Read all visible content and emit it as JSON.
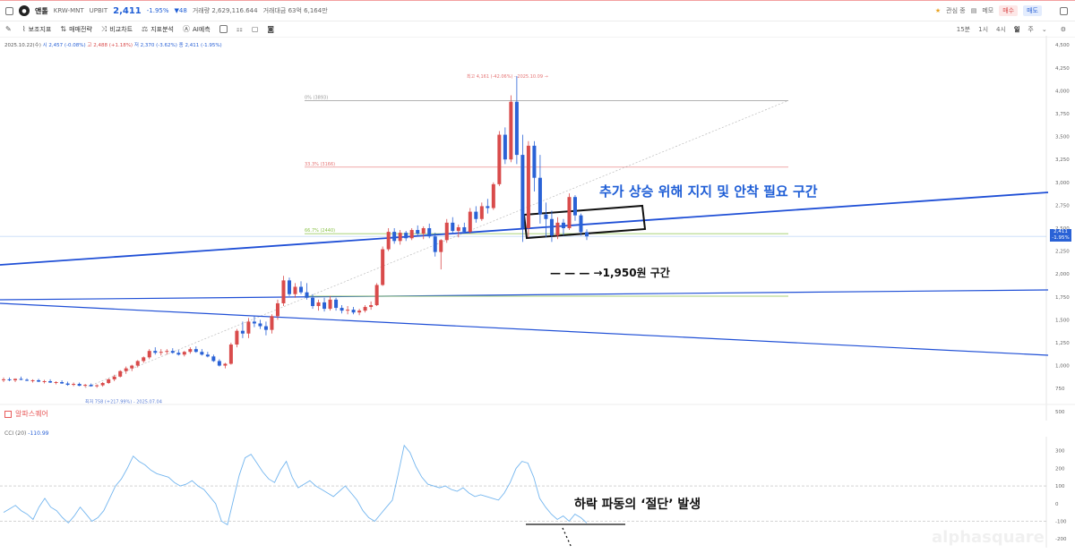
{
  "topbar": {
    "coin_name": "앤톨",
    "market": "KRW-MNT",
    "exchange": "UPBIT",
    "price": "2,411",
    "change": "-1.95%",
    "change_abs": "▼48",
    "volume": "거래량 2,629,116.644",
    "amount": "거래대금 63억 6,164만",
    "fav_label": "관심 종",
    "memo_label": "메모",
    "buy_label": "매수",
    "sell_label": "매도"
  },
  "toolbar": {
    "items": [
      "보조지표",
      "매매전략",
      "비교차트",
      "지표분석",
      "AI예측"
    ],
    "timeframes": [
      "15분",
      "1시",
      "4시",
      "일",
      "주"
    ],
    "active_timeframe": "일"
  },
  "ohlc": {
    "date": "2025.10.22(수)",
    "open": "시 2,457 (-0.08%)",
    "high": "고 2,488 (+1.18%)",
    "low": "저 2,370 (-3.62%)",
    "close": "종 2,411 (-1.95%)"
  },
  "annotations": {
    "support_zone": "추가 상승 위해 지지 및 안착 필요 구간",
    "level_1950": "— — — →1,950원 구간",
    "cci_cut": "하락 파동의 ‘절단’ 발생",
    "high_marker": "최고 4,161 (-42.06%) - 2025.10.09 →",
    "low_marker": "최저 758 (+217.99%) - 2025.07.04",
    "fib_0": "0% (3893)",
    "fib_333": "33.3% (3166)",
    "fib_667": "66.7% (2440)"
  },
  "indicator": {
    "panel_name": "알파스퀘어",
    "cci_label": "CCI (20)",
    "cci_value": "-110.99"
  },
  "price_tag": {
    "price": "2,411",
    "change": "-1.95%"
  },
  "watermark": "alphasquare",
  "colors": {
    "up": "#d94b4b",
    "down": "#2a62d6",
    "trendline": "#1f4fd6",
    "cci": "#74b6ef"
  },
  "chart_data": [
    {
      "type": "candlestick",
      "title": "",
      "y_axis_ticks": [
        4500,
        4250,
        4000,
        3750,
        3500,
        3250,
        3000,
        2750,
        2500,
        2250,
        2000,
        1750,
        1500,
        1250,
        1000,
        750,
        500
      ],
      "ylim": [
        400,
        4600
      ],
      "fib_levels": [
        {
          "label": "0% (3893)",
          "value": 3893
        },
        {
          "label": "33.3% (3166)",
          "value": 3166
        },
        {
          "label": "66.7% (2440)",
          "value": 2440
        }
      ],
      "last_price": 2411,
      "candles": [
        {
          "o": 840,
          "h": 870,
          "l": 820,
          "c": 850
        },
        {
          "o": 850,
          "h": 870,
          "l": 830,
          "c": 840
        },
        {
          "o": 840,
          "h": 860,
          "l": 820,
          "c": 855
        },
        {
          "o": 855,
          "h": 880,
          "l": 840,
          "c": 845
        },
        {
          "o": 845,
          "h": 860,
          "l": 830,
          "c": 835
        },
        {
          "o": 835,
          "h": 850,
          "l": 815,
          "c": 840
        },
        {
          "o": 840,
          "h": 855,
          "l": 820,
          "c": 825
        },
        {
          "o": 825,
          "h": 845,
          "l": 805,
          "c": 830
        },
        {
          "o": 830,
          "h": 850,
          "l": 810,
          "c": 815
        },
        {
          "o": 815,
          "h": 830,
          "l": 795,
          "c": 820
        },
        {
          "o": 820,
          "h": 840,
          "l": 800,
          "c": 805
        },
        {
          "o": 805,
          "h": 825,
          "l": 780,
          "c": 790
        },
        {
          "o": 790,
          "h": 815,
          "l": 775,
          "c": 800
        },
        {
          "o": 800,
          "h": 815,
          "l": 775,
          "c": 780
        },
        {
          "o": 780,
          "h": 800,
          "l": 765,
          "c": 790
        },
        {
          "o": 790,
          "h": 805,
          "l": 770,
          "c": 775
        },
        {
          "o": 775,
          "h": 795,
          "l": 758,
          "c": 785
        },
        {
          "o": 785,
          "h": 820,
          "l": 770,
          "c": 810
        },
        {
          "o": 810,
          "h": 860,
          "l": 800,
          "c": 850
        },
        {
          "o": 850,
          "h": 900,
          "l": 830,
          "c": 880
        },
        {
          "o": 880,
          "h": 950,
          "l": 870,
          "c": 940
        },
        {
          "o": 940,
          "h": 990,
          "l": 910,
          "c": 970
        },
        {
          "o": 970,
          "h": 1010,
          "l": 940,
          "c": 1000
        },
        {
          "o": 1000,
          "h": 1060,
          "l": 980,
          "c": 1050
        },
        {
          "o": 1050,
          "h": 1100,
          "l": 1030,
          "c": 1090
        },
        {
          "o": 1090,
          "h": 1180,
          "l": 1070,
          "c": 1160
        },
        {
          "o": 1160,
          "h": 1200,
          "l": 1120,
          "c": 1140
        },
        {
          "o": 1140,
          "h": 1180,
          "l": 1110,
          "c": 1150
        },
        {
          "o": 1150,
          "h": 1180,
          "l": 1120,
          "c": 1160
        },
        {
          "o": 1160,
          "h": 1190,
          "l": 1130,
          "c": 1140
        },
        {
          "o": 1140,
          "h": 1170,
          "l": 1110,
          "c": 1120
        },
        {
          "o": 1120,
          "h": 1160,
          "l": 1100,
          "c": 1150
        },
        {
          "o": 1150,
          "h": 1200,
          "l": 1130,
          "c": 1180
        },
        {
          "o": 1180,
          "h": 1210,
          "l": 1140,
          "c": 1150
        },
        {
          "o": 1150,
          "h": 1180,
          "l": 1110,
          "c": 1120
        },
        {
          "o": 1120,
          "h": 1150,
          "l": 1090,
          "c": 1100
        },
        {
          "o": 1100,
          "h": 1120,
          "l": 1040,
          "c": 1050
        },
        {
          "o": 1050,
          "h": 1070,
          "l": 990,
          "c": 1000
        },
        {
          "o": 1000,
          "h": 1030,
          "l": 970,
          "c": 1020
        },
        {
          "o": 1020,
          "h": 1250,
          "l": 1010,
          "c": 1230
        },
        {
          "o": 1230,
          "h": 1400,
          "l": 1200,
          "c": 1380
        },
        {
          "o": 1380,
          "h": 1480,
          "l": 1300,
          "c": 1350
        },
        {
          "o": 1350,
          "h": 1520,
          "l": 1300,
          "c": 1480
        },
        {
          "o": 1480,
          "h": 1540,
          "l": 1420,
          "c": 1460
        },
        {
          "o": 1460,
          "h": 1500,
          "l": 1400,
          "c": 1430
        },
        {
          "o": 1430,
          "h": 1480,
          "l": 1330,
          "c": 1390
        },
        {
          "o": 1390,
          "h": 1560,
          "l": 1350,
          "c": 1540
        },
        {
          "o": 1540,
          "h": 1720,
          "l": 1500,
          "c": 1680
        },
        {
          "o": 1680,
          "h": 1980,
          "l": 1650,
          "c": 1930
        },
        {
          "o": 1930,
          "h": 1960,
          "l": 1760,
          "c": 1780
        },
        {
          "o": 1780,
          "h": 1900,
          "l": 1740,
          "c": 1860
        },
        {
          "o": 1860,
          "h": 1920,
          "l": 1780,
          "c": 1800
        },
        {
          "o": 1800,
          "h": 1900,
          "l": 1720,
          "c": 1740
        },
        {
          "o": 1740,
          "h": 1780,
          "l": 1620,
          "c": 1650
        },
        {
          "o": 1650,
          "h": 1720,
          "l": 1600,
          "c": 1690
        },
        {
          "o": 1690,
          "h": 1740,
          "l": 1590,
          "c": 1620
        },
        {
          "o": 1620,
          "h": 1760,
          "l": 1600,
          "c": 1720
        },
        {
          "o": 1720,
          "h": 1740,
          "l": 1600,
          "c": 1630
        },
        {
          "o": 1630,
          "h": 1660,
          "l": 1570,
          "c": 1600
        },
        {
          "o": 1600,
          "h": 1650,
          "l": 1560,
          "c": 1610
        },
        {
          "o": 1610,
          "h": 1640,
          "l": 1560,
          "c": 1580
        },
        {
          "o": 1580,
          "h": 1620,
          "l": 1550,
          "c": 1600
        },
        {
          "o": 1600,
          "h": 1660,
          "l": 1580,
          "c": 1640
        },
        {
          "o": 1640,
          "h": 1700,
          "l": 1610,
          "c": 1660
        },
        {
          "o": 1660,
          "h": 1900,
          "l": 1650,
          "c": 1880
        },
        {
          "o": 1880,
          "h": 2300,
          "l": 1870,
          "c": 2270
        },
        {
          "o": 2270,
          "h": 2500,
          "l": 2250,
          "c": 2460
        },
        {
          "o": 2460,
          "h": 2500,
          "l": 2330,
          "c": 2360
        },
        {
          "o": 2360,
          "h": 2480,
          "l": 2320,
          "c": 2450
        },
        {
          "o": 2450,
          "h": 2470,
          "l": 2360,
          "c": 2390
        },
        {
          "o": 2390,
          "h": 2500,
          "l": 2370,
          "c": 2480
        },
        {
          "o": 2480,
          "h": 2530,
          "l": 2410,
          "c": 2440
        },
        {
          "o": 2440,
          "h": 2520,
          "l": 2380,
          "c": 2500
        },
        {
          "o": 2500,
          "h": 2550,
          "l": 2390,
          "c": 2410
        },
        {
          "o": 2410,
          "h": 2450,
          "l": 2190,
          "c": 2240
        },
        {
          "o": 2240,
          "h": 2380,
          "l": 2050,
          "c": 2370
        },
        {
          "o": 2370,
          "h": 2600,
          "l": 2340,
          "c": 2560
        },
        {
          "o": 2560,
          "h": 2620,
          "l": 2440,
          "c": 2470
        },
        {
          "o": 2470,
          "h": 2540,
          "l": 2400,
          "c": 2510
        },
        {
          "o": 2510,
          "h": 2560,
          "l": 2440,
          "c": 2460
        },
        {
          "o": 2460,
          "h": 2720,
          "l": 2440,
          "c": 2680
        },
        {
          "o": 2680,
          "h": 2740,
          "l": 2560,
          "c": 2600
        },
        {
          "o": 2600,
          "h": 2780,
          "l": 2580,
          "c": 2740
        },
        {
          "o": 2740,
          "h": 2820,
          "l": 2660,
          "c": 2720
        },
        {
          "o": 2720,
          "h": 3000,
          "l": 2700,
          "c": 2980
        },
        {
          "o": 2980,
          "h": 3560,
          "l": 2960,
          "c": 3520
        },
        {
          "o": 3520,
          "h": 3600,
          "l": 3200,
          "c": 3250
        },
        {
          "o": 3250,
          "h": 3950,
          "l": 3220,
          "c": 3880
        },
        {
          "o": 3880,
          "h": 4161,
          "l": 3200,
          "c": 3300
        },
        {
          "o": 3300,
          "h": 3520,
          "l": 2350,
          "c": 2500
        },
        {
          "o": 2500,
          "h": 3450,
          "l": 2400,
          "c": 3400
        },
        {
          "o": 3400,
          "h": 3450,
          "l": 2900,
          "c": 3050
        },
        {
          "o": 3050,
          "h": 3300,
          "l": 2550,
          "c": 2650
        },
        {
          "o": 2650,
          "h": 2780,
          "l": 2400,
          "c": 2600
        },
        {
          "o": 2600,
          "h": 2690,
          "l": 2350,
          "c": 2420
        },
        {
          "o": 2420,
          "h": 2620,
          "l": 2380,
          "c": 2560
        },
        {
          "o": 2560,
          "h": 2600,
          "l": 2420,
          "c": 2500
        },
        {
          "o": 2500,
          "h": 2880,
          "l": 2480,
          "c": 2840
        },
        {
          "o": 2840,
          "h": 2860,
          "l": 2580,
          "c": 2640
        },
        {
          "o": 2640,
          "h": 2660,
          "l": 2420,
          "c": 2457
        },
        {
          "o": 2457,
          "h": 2488,
          "l": 2370,
          "c": 2411
        }
      ]
    },
    {
      "type": "line",
      "title": "CCI (20)",
      "y_axis_ticks": [
        300,
        200,
        100,
        0,
        -100,
        -200
      ],
      "ylim": [
        -250,
        380
      ],
      "reference_lines": [
        100,
        -100
      ],
      "values": [
        -50,
        -30,
        -10,
        -40,
        -60,
        -90,
        -20,
        30,
        -20,
        -40,
        -80,
        -110,
        -70,
        -20,
        -60,
        -100,
        -80,
        -40,
        30,
        100,
        140,
        200,
        270,
        240,
        220,
        190,
        170,
        160,
        150,
        120,
        100,
        110,
        130,
        100,
        80,
        40,
        0,
        -100,
        -120,
        20,
        160,
        260,
        280,
        230,
        180,
        140,
        120,
        190,
        240,
        150,
        90,
        110,
        130,
        100,
        80,
        60,
        40,
        70,
        100,
        60,
        20,
        -40,
        -80,
        -100,
        -60,
        -20,
        20,
        170,
        330,
        290,
        210,
        150,
        110,
        100,
        90,
        100,
        80,
        70,
        90,
        60,
        40,
        50,
        40,
        30,
        20,
        60,
        120,
        200,
        240,
        230,
        150,
        30,
        -20,
        -60,
        -90,
        -70,
        -100,
        -60,
        -80,
        -110
      ]
    }
  ]
}
